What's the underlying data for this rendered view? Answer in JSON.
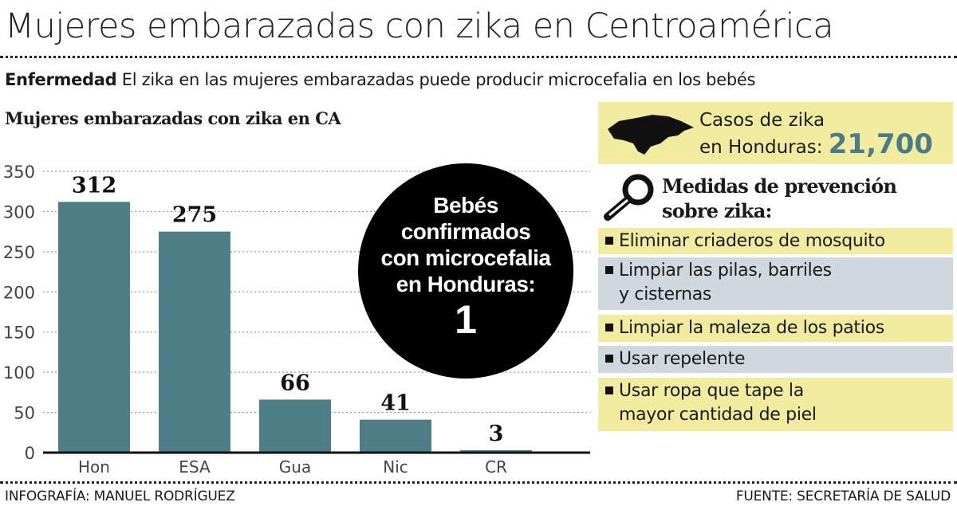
{
  "title": "Mujeres embarazadas con zika en Centroamérica",
  "subtitle": {
    "label": "Enfermedad",
    "text": "El zika en las mujeres embarazadas puede producir microcefalia en los bebés"
  },
  "chart_data": {
    "type": "bar",
    "title": "Mujeres embarazadas con zika en CA",
    "categories": [
      "Hon",
      "ESA",
      "Gua",
      "Nic",
      "CR"
    ],
    "values": [
      312,
      275,
      66,
      41,
      3
    ],
    "ylim": [
      0,
      350
    ],
    "yticks": [
      0,
      50,
      100,
      150,
      200,
      250,
      300,
      350
    ],
    "grid": true,
    "bar_color": "#4e7f87"
  },
  "callout": {
    "text": [
      "Bebés",
      "confirmados",
      "con microcefalia",
      "en Honduras:"
    ],
    "value": "1"
  },
  "cases": {
    "line1": "Casos de zika",
    "line2": "en Honduras:",
    "value": "21,700",
    "icon": "honduras-map-icon"
  },
  "prevention": {
    "icon": "magnifier-icon",
    "title1": "Medidas de prevención",
    "title2": "sobre zika:",
    "items": [
      [
        "Eliminar criaderos de mosquito"
      ],
      [
        "Limpiar las pilas, barriles",
        "y cisternas"
      ],
      [
        "Limpiar la maleza de los patios"
      ],
      [
        "Usar repelente"
      ],
      [
        "Usar ropa que tape la",
        "mayor cantidad de piel"
      ]
    ]
  },
  "footer": {
    "left": "INFOGRAFÍA: MANUEL RODRÍGUEZ",
    "right": "FUENTE: SECRETARÍA DE SALUD"
  },
  "colors": {
    "yellow": "#f2eca0",
    "gray": "#cfd8df",
    "accent": "#4a7b86"
  }
}
